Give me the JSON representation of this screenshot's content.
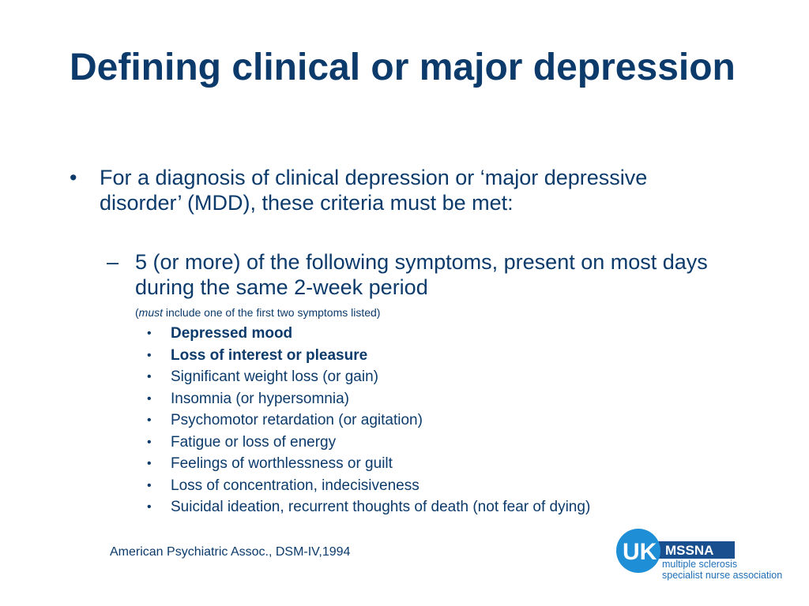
{
  "slide": {
    "title": "Defining clinical or major depression",
    "main_bullet_marker": "•",
    "main_bullet": "For a diagnosis of clinical depression or ‘major depressive disorder’ (MDD), these criteria must be met:",
    "sub_marker": "–",
    "sub_bullet": "5 (or more) of the following symptoms, present on most days during the same 2-week period",
    "note_open": "(",
    "note_emphasis": "must",
    "note_rest": " include one of the first two symptoms listed)",
    "symptom_marker": "•",
    "symptoms": [
      {
        "text": "Depressed mood",
        "bold": true
      },
      {
        "text": "Loss of interest or pleasure",
        "bold": true
      },
      {
        "text": "Significant weight loss (or gain)",
        "bold": false
      },
      {
        "text": "Insomnia (or hypersomnia)",
        "bold": false
      },
      {
        "text": "Psychomotor retardation (or agitation)",
        "bold": false
      },
      {
        "text": "Fatigue or loss of energy",
        "bold": false
      },
      {
        "text": "Feelings of worthlessness or guilt",
        "bold": false
      },
      {
        "text": "Loss of concentration, indecisiveness",
        "bold": false
      },
      {
        "text": "Suicidal ideation, recurrent thoughts of death (not fear of dying)",
        "bold": false
      }
    ],
    "source": "American Psychiatric Assoc., DSM-IV,1994"
  },
  "logo": {
    "badge": "UK",
    "acronym": "MSSNA",
    "line1": "multiple sclerosis",
    "line2": "specialist nurse association",
    "colors": {
      "circle": "#1e8fd6",
      "banner": "#1a4f8f",
      "text": "#1e6fb8"
    }
  },
  "colors": {
    "text": "#0b3a6b",
    "background": "#ffffff"
  }
}
